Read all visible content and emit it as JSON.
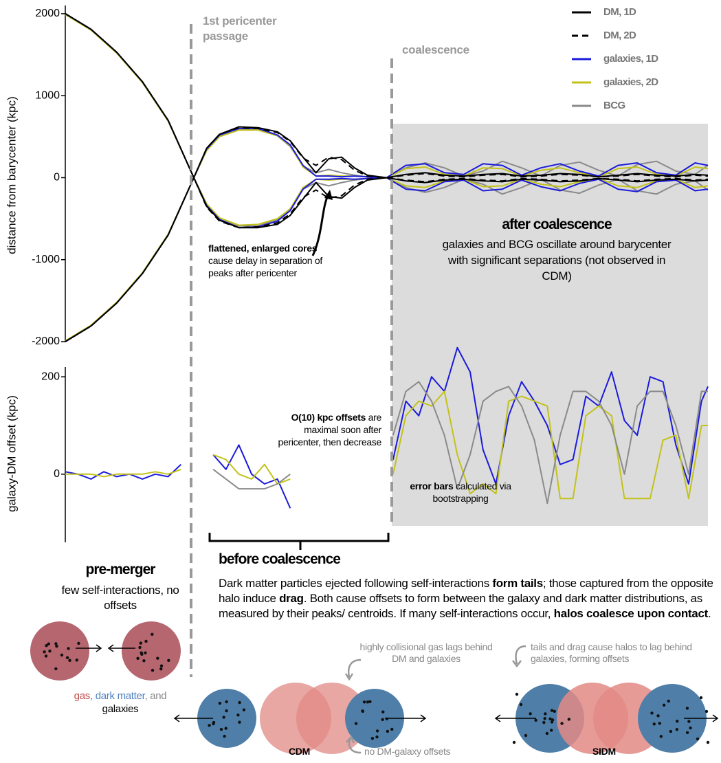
{
  "chart_data": [
    {
      "type": "line",
      "ylabel": "distance from barycenter (kpc)",
      "xlim": [
        0,
        100
      ],
      "ylim": [
        -2000,
        2100
      ],
      "yticks": [
        -2000,
        -1000,
        0,
        1000,
        2000
      ],
      "legend": "upper right",
      "x": [
        0,
        4,
        8,
        12,
        16,
        20,
        22,
        24,
        27,
        30,
        33,
        35,
        37,
        39,
        41,
        43,
        45,
        47,
        50,
        53,
        56,
        59,
        62,
        65,
        68,
        71,
        74,
        77,
        80,
        83,
        86,
        89,
        92,
        95,
        98,
        100
      ],
      "series": [
        {
          "name": "DM, 1D",
          "color": "#000000",
          "dash": false,
          "values": [
            2000,
            1810,
            1530,
            1170,
            700,
            0,
            360,
            530,
            620,
            610,
            560,
            450,
            250,
            60,
            230,
            250,
            120,
            30,
            0,
            40,
            60,
            30,
            20,
            40,
            50,
            20,
            30,
            50,
            40,
            10,
            30,
            50,
            30,
            20,
            40,
            30
          ],
          "values_lower": [
            -2000,
            -1810,
            -1530,
            -1170,
            -700,
            0,
            -350,
            -520,
            -610,
            -610,
            -570,
            -460,
            -260,
            -60,
            -230,
            -250,
            -120,
            -30,
            0,
            -40,
            -60,
            -30,
            -20,
            -40,
            -50,
            -20,
            -30,
            -50,
            -40,
            -10,
            -30,
            -50,
            -30,
            -20,
            -40,
            -30
          ]
        },
        {
          "name": "DM, 2D",
          "color": "#000000",
          "dash": true,
          "values": [
            2000,
            1810,
            1530,
            1170,
            700,
            0,
            360,
            530,
            610,
            600,
            550,
            440,
            240,
            150,
            250,
            220,
            90,
            20,
            0,
            30,
            50,
            20,
            10,
            30,
            40,
            10,
            20,
            40,
            30,
            10,
            20,
            40,
            20,
            10,
            30,
            20
          ],
          "values_lower": [
            -2000,
            -1810,
            -1530,
            -1170,
            -700,
            0,
            -360,
            -530,
            -610,
            -600,
            -550,
            -440,
            -240,
            -150,
            -250,
            -220,
            -90,
            -20,
            0,
            -30,
            -50,
            -20,
            -10,
            -30,
            -40,
            -10,
            -20,
            -40,
            -30,
            -10,
            -20,
            -40,
            -20,
            -10,
            -30,
            -20
          ]
        },
        {
          "name": "galaxies, 1D",
          "color": "#1a1adb",
          "dash": false,
          "values": [
            2000,
            1810,
            1530,
            1170,
            700,
            0,
            350,
            520,
            600,
            600,
            520,
            400,
            150,
            20,
            20,
            10,
            20,
            10,
            0,
            150,
            170,
            60,
            40,
            170,
            150,
            30,
            120,
            170,
            80,
            20,
            150,
            180,
            60,
            30,
            180,
            150
          ],
          "values_lower": [
            -2000,
            -1810,
            -1530,
            -1170,
            -700,
            0,
            -340,
            -510,
            -610,
            -600,
            -530,
            -400,
            -140,
            -20,
            -20,
            -10,
            -20,
            -10,
            0,
            -140,
            -160,
            -50,
            -30,
            -160,
            -140,
            -30,
            -110,
            -160,
            -70,
            -20,
            -140,
            -170,
            -50,
            -30,
            -160,
            -140
          ]
        },
        {
          "name": "galaxies, 2D",
          "color": "#c2c21a",
          "dash": false,
          "values": [
            1990,
            1800,
            1520,
            1160,
            690,
            0,
            330,
            500,
            580,
            580,
            510,
            390,
            130,
            20,
            30,
            20,
            20,
            10,
            0,
            110,
            130,
            40,
            20,
            120,
            110,
            20,
            90,
            120,
            60,
            10,
            110,
            130,
            40,
            20,
            130,
            110
          ],
          "values_lower": [
            -1990,
            -1800,
            -1520,
            -1160,
            -690,
            0,
            -320,
            -490,
            -580,
            -570,
            -500,
            -380,
            -120,
            -20,
            -30,
            -20,
            -20,
            -10,
            0,
            -100,
            -120,
            -40,
            -20,
            -110,
            -100,
            -20,
            -80,
            -110,
            -50,
            -10,
            -100,
            -120,
            -40,
            -20,
            -120,
            -100
          ]
        },
        {
          "name": "BCG",
          "color": "#8a8a8a",
          "dash": false,
          "values": [
            2000,
            1810,
            1530,
            1170,
            700,
            0,
            340,
            510,
            590,
            590,
            510,
            380,
            140,
            60,
            100,
            60,
            30,
            10,
            0,
            120,
            180,
            120,
            20,
            80,
            200,
            120,
            20,
            150,
            190,
            90,
            20,
            160,
            200,
            80,
            40,
            150
          ],
          "values_lower": [
            -2000,
            -1810,
            -1530,
            -1170,
            -700,
            0,
            -340,
            -510,
            -590,
            -590,
            -510,
            -380,
            -140,
            -60,
            -100,
            -60,
            -30,
            -10,
            0,
            -120,
            -180,
            -120,
            -20,
            -80,
            -200,
            -120,
            -20,
            -150,
            -190,
            -90,
            -20,
            -160,
            -200,
            -80,
            -40,
            -150
          ]
        }
      ]
    },
    {
      "type": "line",
      "ylabel": "galaxy-DM offset (kpc)",
      "xlim": [
        0,
        100
      ],
      "ylim": [
        -140,
        220
      ],
      "yticks": [
        0,
        200
      ],
      "x": [
        0,
        2,
        4,
        6,
        8,
        10,
        12,
        14,
        16,
        18,
        20,
        23,
        25,
        27,
        29,
        31,
        33,
        35,
        38,
        51,
        53,
        55,
        57,
        59,
        61,
        63,
        65,
        67,
        69,
        71,
        73,
        75,
        77,
        79,
        81,
        83,
        85,
        87,
        89,
        91,
        93,
        95,
        97,
        99,
        100
      ],
      "series": [
        {
          "color": "#8a8a8a",
          "values": [
            null,
            null,
            null,
            null,
            null,
            null,
            null,
            null,
            null,
            null,
            null,
            10,
            -10,
            -30,
            -30,
            -30,
            -20,
            0,
            null,
            80,
            170,
            190,
            150,
            80,
            -30,
            40,
            150,
            170,
            180,
            140,
            70,
            -60,
            80,
            170,
            170,
            150,
            100,
            0,
            140,
            170,
            170,
            100,
            0,
            170,
            170
          ]
        },
        {
          "color": "#c2c21a",
          "values": [
            0,
            0,
            0,
            -5,
            0,
            0,
            0,
            5,
            0,
            10,
            null,
            40,
            30,
            0,
            -10,
            20,
            -20,
            -10,
            null,
            0,
            120,
            150,
            140,
            170,
            40,
            -40,
            -20,
            -40,
            150,
            160,
            150,
            140,
            -50,
            -50,
            120,
            140,
            120,
            -50,
            -50,
            -50,
            70,
            80,
            -50,
            100,
            100
          ]
        },
        {
          "color": "#1a1adb",
          "values": [
            5,
            0,
            -10,
            5,
            -5,
            0,
            -10,
            0,
            -5,
            20,
            null,
            40,
            10,
            60,
            0,
            -20,
            -10,
            -70,
            null,
            30,
            150,
            120,
            200,
            170,
            260,
            210,
            50,
            -20,
            120,
            190,
            150,
            100,
            20,
            30,
            160,
            140,
            210,
            110,
            80,
            200,
            190,
            60,
            -20,
            150,
            180
          ]
        }
      ]
    }
  ],
  "annotations": [
    {
      "parts": [
        {
          "text": "1st pericenter passage"
        }
      ]
    },
    {
      "parts": [
        {
          "text": "coalescence"
        }
      ]
    },
    {
      "parts": [
        {
          "text": "flattened, enlarged cores",
          "bold": true
        },
        {
          "text": " cause delay in separation of peaks after pericenter"
        }
      ]
    },
    {
      "parts": [
        {
          "text": "after coalescence",
          "bold": true
        }
      ]
    },
    {
      "parts": [
        {
          "text": "galaxies and BCG oscillate around barycenter with significant separations (not observed in CDM)"
        }
      ]
    },
    {
      "parts": [
        {
          "text": "O(10) kpc offsets",
          "bold": true
        },
        {
          "text": " are maximal soon after pericenter, then decrease"
        }
      ]
    },
    {
      "parts": [
        {
          "text": "error bars",
          "bold": true
        },
        {
          "text": " calculated via bootstrapping"
        }
      ]
    },
    {
      "parts": [
        {
          "text": "before coalescence",
          "bold": true
        }
      ]
    },
    {
      "parts": [
        {
          "text": "Dark matter particles ejected following self-interactions "
        },
        {
          "text": "form tails",
          "bold": true
        },
        {
          "text": "; those captured from the opposite halo induce "
        },
        {
          "text": "drag",
          "bold": true
        },
        {
          "text": ". Both cause offsets to form between the galaxy and dark matter distributions, as measured by their peaks/ centroids. If many self-interactions occur, "
        },
        {
          "text": "halos coalesce upon contact",
          "bold": true
        },
        {
          "text": "."
        }
      ]
    },
    {
      "parts": [
        {
          "text": "pre-merger",
          "bold": true
        }
      ]
    },
    {
      "parts": [
        {
          "text": "few self-interactions, no offsets"
        }
      ]
    },
    {
      "parts": [
        {
          "text": "gas",
          "color": "#c0504d"
        },
        {
          "text": ", ",
          "color": "#888888"
        },
        {
          "text": "dark matter",
          "color": "#4f81bd"
        },
        {
          "text": ", and ",
          "color": "#888888"
        },
        {
          "text": "galaxies",
          "color": "#000000"
        }
      ]
    },
    {
      "parts": [
        {
          "text": "highly collisional gas lags behind DM and galaxies"
        }
      ]
    },
    {
      "parts": [
        {
          "text": "no DM-galaxy offsets"
        }
      ]
    },
    {
      "parts": [
        {
          "text": "tails and drag cause halos to lag behind galaxies, forming offsets"
        }
      ]
    },
    {
      "parts": [
        {
          "text": "CDM",
          "bold": true
        }
      ]
    },
    {
      "parts": [
        {
          "text": "SIDM",
          "bold": true
        }
      ]
    }
  ]
}
